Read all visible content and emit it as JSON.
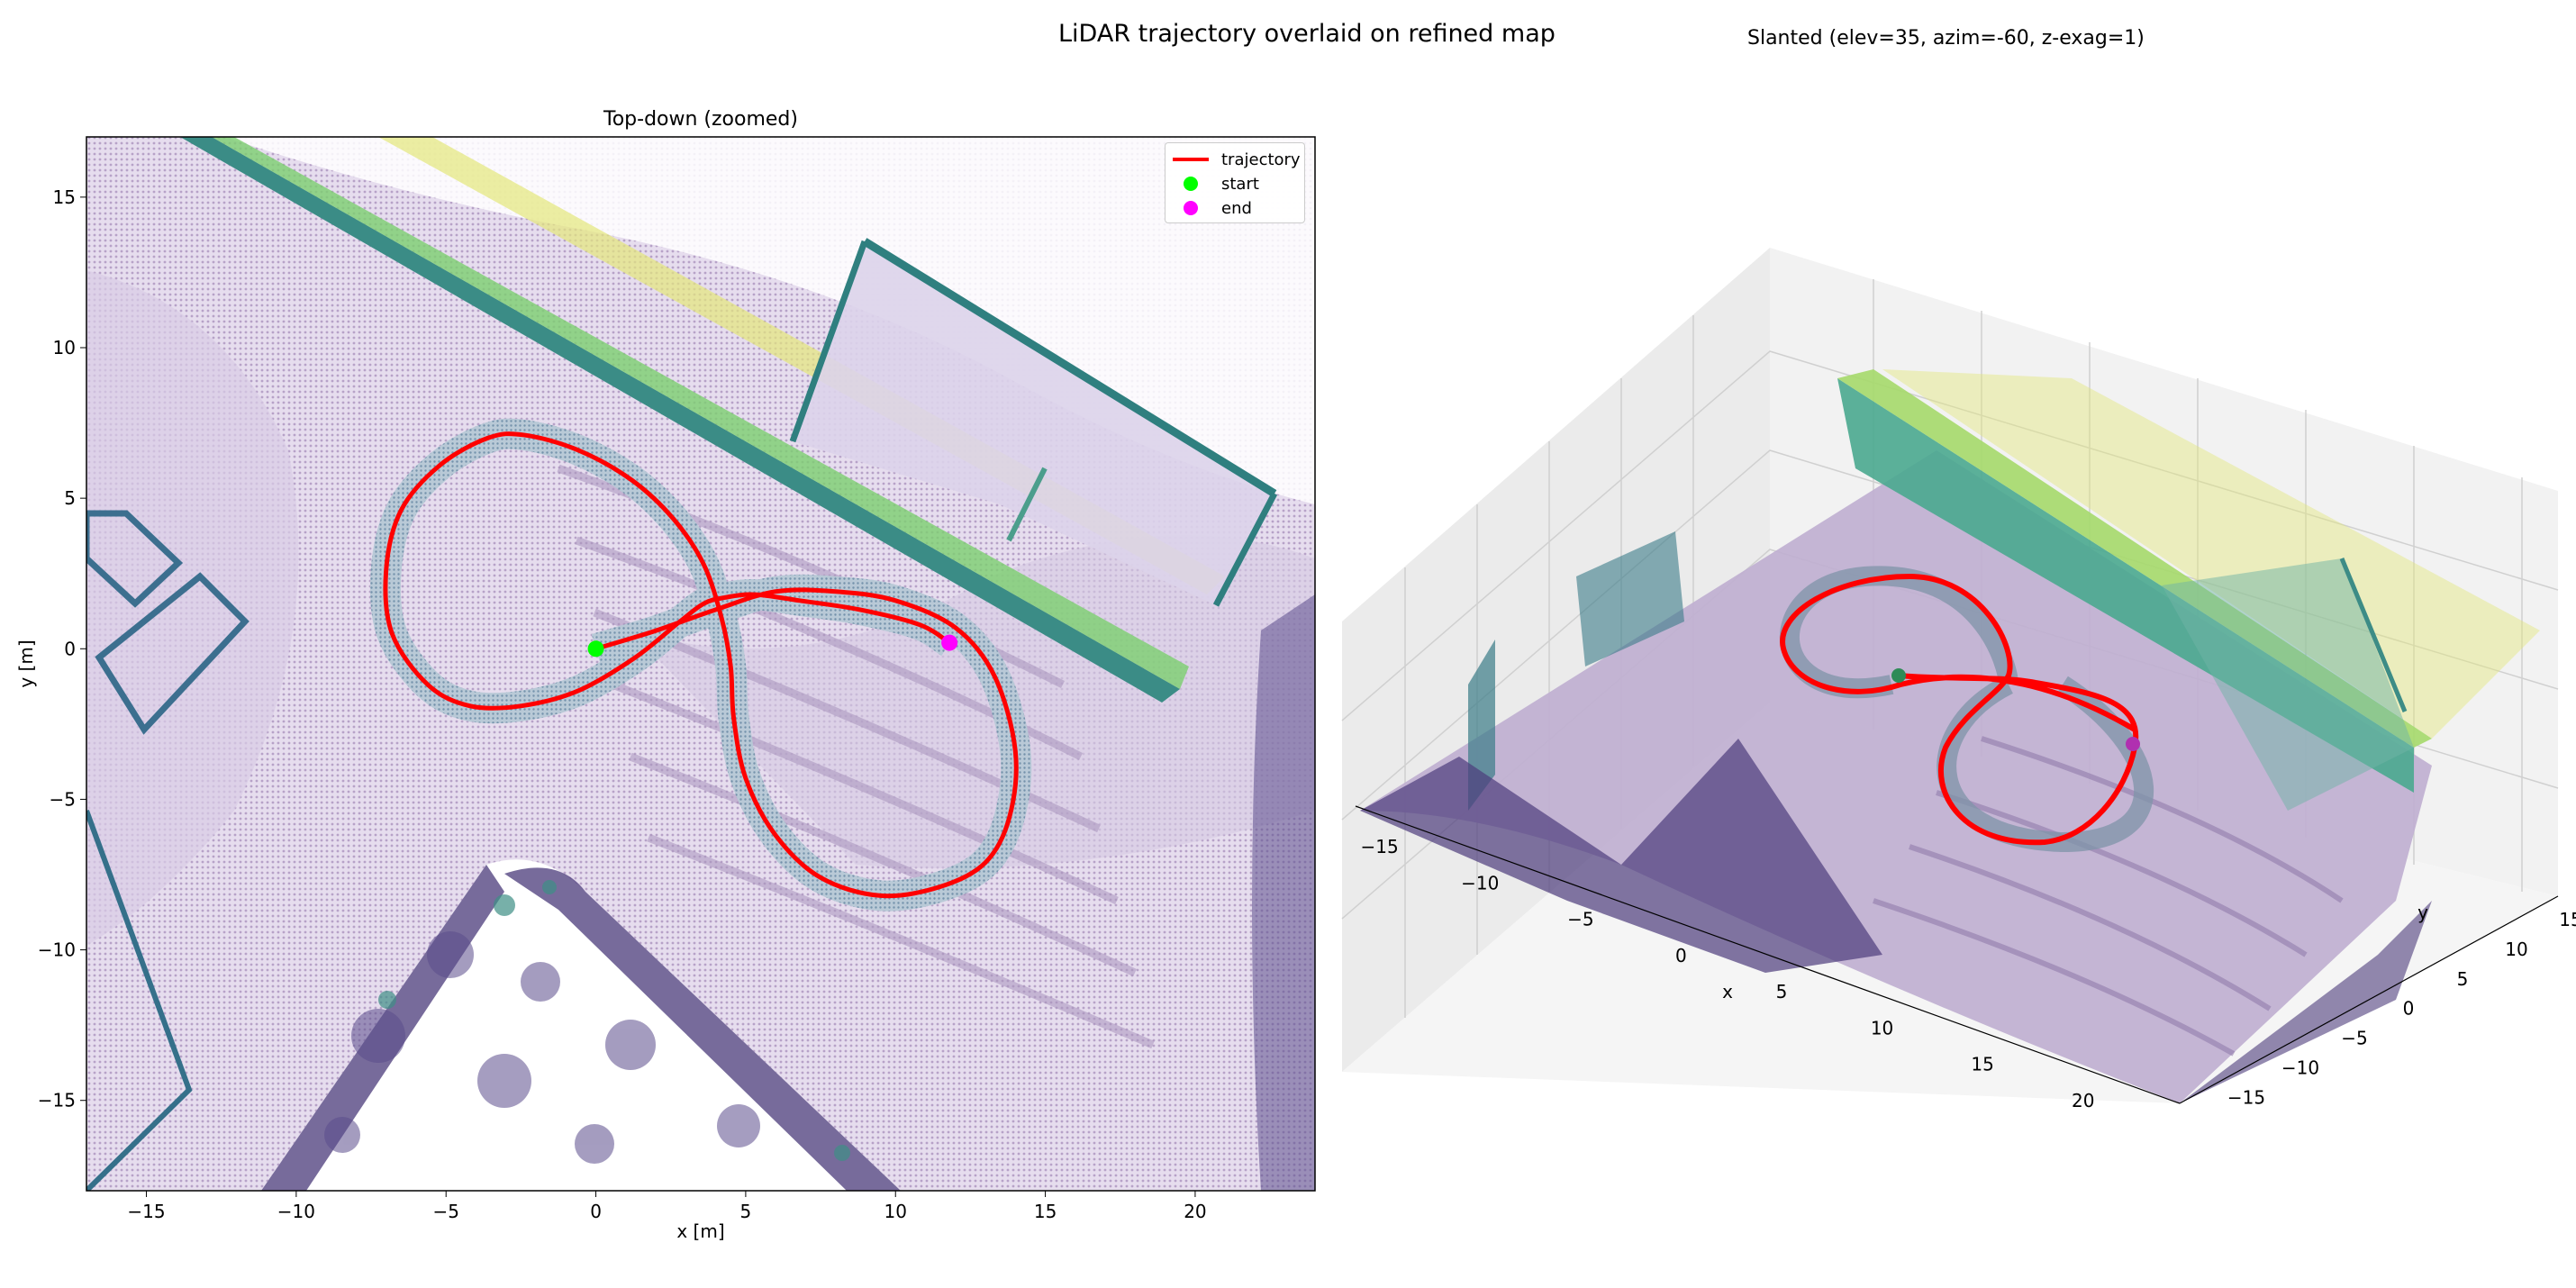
{
  "figure": {
    "suptitle": "LiDAR trajectory overlaid on refined map"
  },
  "chart_data": [
    {
      "type": "scatter",
      "title": "Top-down (zoomed)",
      "xlabel": "x [m]",
      "ylabel": "y [m]",
      "xlim": [
        -17,
        24
      ],
      "ylim": [
        -18,
        17
      ],
      "xticks": [
        -15,
        -10,
        -5,
        0,
        5,
        10,
        15,
        20
      ],
      "yticks": [
        -15,
        -10,
        -5,
        0,
        5,
        10,
        15
      ],
      "grid": false,
      "legend": {
        "placement": "top-right",
        "entries": [
          {
            "label": "trajectory",
            "color": "#ff0000",
            "marker": "line"
          },
          {
            "label": "start",
            "color": "#00ff00",
            "marker": "dot"
          },
          {
            "label": "end",
            "color": "#ff00ff",
            "marker": "dot"
          }
        ]
      },
      "trajectory": {
        "x": [
          0,
          2,
          4,
          6,
          8,
          10,
          12,
          13.3,
          14,
          13.8,
          13,
          11.5,
          9.5,
          7.5,
          6,
          5,
          4.6,
          4.5,
          4.2,
          3.6,
          2.6,
          1.2,
          -0.6,
          -2.4,
          -3.6,
          -5.2,
          -6.5,
          -7.0,
          -6.8,
          -5.6,
          -4.2,
          -2.5,
          -0.6,
          1.3,
          2.8,
          3.6,
          4.3,
          5.3,
          6.8,
          8.8,
          10.8,
          11.8
        ],
        "y": [
          0,
          0.6,
          1.3,
          1.9,
          1.9,
          1.6,
          0.7,
          -0.9,
          -3.4,
          -5.6,
          -7.1,
          -7.9,
          -8.2,
          -7.6,
          -6.2,
          -4.3,
          -2.3,
          -0.6,
          1.0,
          2.8,
          4.3,
          5.6,
          6.6,
          7.1,
          7.0,
          6.1,
          4.6,
          2.6,
          0.5,
          -1.2,
          -1.9,
          -1.9,
          -1.4,
          -0.3,
          0.9,
          1.5,
          1.7,
          1.8,
          1.6,
          1.3,
          0.8,
          0.2
        ]
      },
      "start": {
        "label": "start",
        "x": 0,
        "y": 0,
        "color": "#00ff00"
      },
      "end": {
        "label": "end",
        "x": 11.8,
        "y": 0.2,
        "color": "#ff00ff"
      }
    },
    {
      "type": "scatter",
      "title": "Slanted (elev=35, azim=-60, z-exag=1)",
      "xlabel": "x",
      "ylabel": "y",
      "xticks": [
        -15,
        -10,
        -5,
        0,
        5,
        10,
        15,
        20
      ],
      "yticks": [
        -15,
        -10,
        -5,
        0,
        5,
        10,
        15
      ],
      "grid": true
    }
  ],
  "colors": {
    "trajectory": "#ff0000",
    "start": "#00ff00",
    "end": "#ff00ff",
    "ground": "#b9a6c9",
    "walls": "#3a8f86",
    "high": "#d8e45a"
  }
}
